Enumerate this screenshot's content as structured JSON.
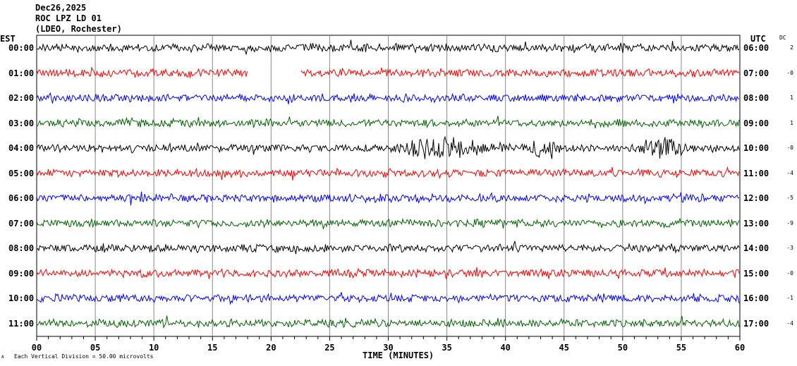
{
  "header": {
    "date": "Dec26,2025",
    "station": "ROC LPZ LD 01",
    "network": "(LDEO, Rochester)"
  },
  "left_zone": "EST",
  "right_zone": "UTC",
  "dc_header": "DC",
  "footer": {
    "scale_note": "Each Vertical Division =   50.00 microvolts",
    "corner_mark": "A"
  },
  "chart_data": {
    "type": "line",
    "xlabel": "TIME (MINUTES)",
    "xlim": [
      0,
      60
    ],
    "x_ticks": [
      "00",
      "05",
      "10",
      "15",
      "20",
      "25",
      "30",
      "35",
      "40",
      "45",
      "50",
      "55",
      "60"
    ],
    "grid": "vertical every 5 minutes",
    "colors": [
      "#000000",
      "#ff0000",
      "#0000ff",
      "#006400"
    ],
    "rows": [
      {
        "est": "00:00",
        "utc": "06:00",
        "dc": "2",
        "color": "#000000"
      },
      {
        "est": "01:00",
        "utc": "07:00",
        "dc": "-0",
        "color": "#ff0000",
        "gap_minutes": [
          18,
          22.5
        ]
      },
      {
        "est": "02:00",
        "utc": "08:00",
        "dc": "1",
        "color": "#0000ff"
      },
      {
        "est": "03:00",
        "utc": "09:00",
        "dc": "1",
        "color": "#006400"
      },
      {
        "est": "04:00",
        "utc": "10:00",
        "dc": "-0",
        "color": "#000000",
        "event_minutes": [
          [
            30,
            39
          ],
          [
            42,
            45
          ],
          [
            51,
            56
          ]
        ]
      },
      {
        "est": "05:00",
        "utc": "11:00",
        "dc": "-4",
        "color": "#ff0000"
      },
      {
        "est": "06:00",
        "utc": "12:00",
        "dc": "-5",
        "color": "#0000ff"
      },
      {
        "est": "07:00",
        "utc": "13:00",
        "dc": "-9",
        "color": "#006400"
      },
      {
        "est": "08:00",
        "utc": "14:00",
        "dc": "-3",
        "color": "#000000"
      },
      {
        "est": "09:00",
        "utc": "15:00",
        "dc": "-0",
        "color": "#ff0000"
      },
      {
        "est": "10:00",
        "utc": "16:00",
        "dc": "-1",
        "color": "#0000ff"
      },
      {
        "est": "11:00",
        "utc": "17:00",
        "dc": "-4",
        "color": "#006400"
      }
    ]
  }
}
